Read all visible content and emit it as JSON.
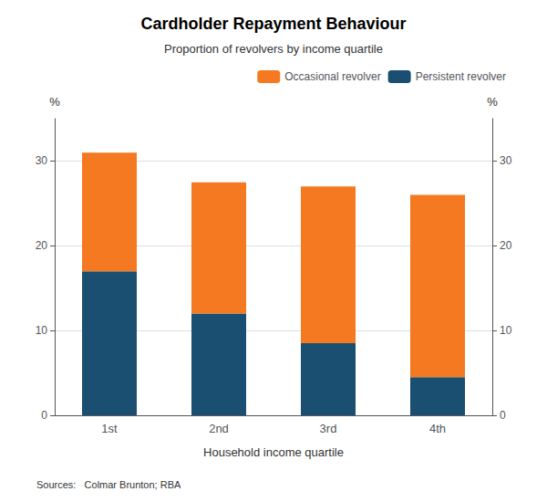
{
  "chart_data": {
    "type": "bar",
    "stacked": true,
    "title": "Cardholder Repayment Behaviour",
    "subtitle": "Proportion of revolvers by income quartile",
    "xlabel": "Household income quartile",
    "ylabel": "%",
    "y2label": "%",
    "categories": [
      "1st",
      "2nd",
      "3rd",
      "4th"
    ],
    "series": [
      {
        "name": "Persistent revolver",
        "color": "#1b4f72",
        "values": [
          17,
          12,
          8.5,
          4.5
        ]
      },
      {
        "name": "Occasional revolver",
        "color": "#f47920",
        "values": [
          14,
          15.5,
          18.5,
          21.5
        ]
      }
    ],
    "ylim": [
      0,
      35
    ],
    "yticks": [
      0,
      10,
      20,
      30
    ],
    "y2lim": [
      0,
      35
    ],
    "y2ticks": [
      0,
      10,
      20,
      30
    ],
    "grid": true,
    "legend": "upper right",
    "annotation": "Sources:   Colmar Brunton; RBA"
  }
}
